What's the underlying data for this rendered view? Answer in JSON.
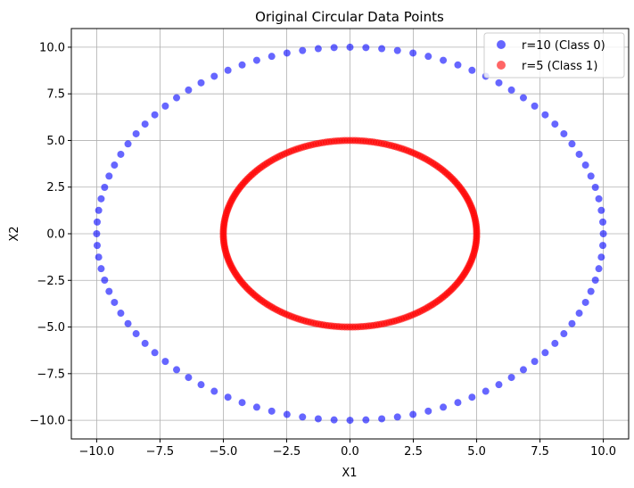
{
  "chart_data": {
    "type": "scatter",
    "title": "Original Circular Data Points",
    "xlabel": "X1",
    "ylabel": "X2",
    "xlim": [
      -11,
      11
    ],
    "ylim": [
      -11,
      11
    ],
    "xticks": [
      -10.0,
      -7.5,
      -5.0,
      -2.5,
      0.0,
      2.5,
      5.0,
      7.5,
      10.0
    ],
    "yticks": [
      -10.0,
      -7.5,
      -5.0,
      -2.5,
      0.0,
      2.5,
      5.0,
      7.5,
      10.0
    ],
    "xtick_labels": [
      "−10.0",
      "−7.5",
      "−5.0",
      "−2.5",
      "0.0",
      "2.5",
      "5.0",
      "7.5",
      "10.0"
    ],
    "ytick_labels": [
      "−10.0",
      "−7.5",
      "−5.0",
      "−2.5",
      "0.0",
      "2.5",
      "5.0",
      "7.5",
      "10.0"
    ],
    "grid": true,
    "legend_position": "top-right",
    "series": [
      {
        "name": "r=10 (Class 0)",
        "color": "#0000ff",
        "radius": 10,
        "points": 100
      },
      {
        "name": "r=5 (Class 1)",
        "color": "#ff0000",
        "radius": 5,
        "points": 300
      }
    ]
  }
}
